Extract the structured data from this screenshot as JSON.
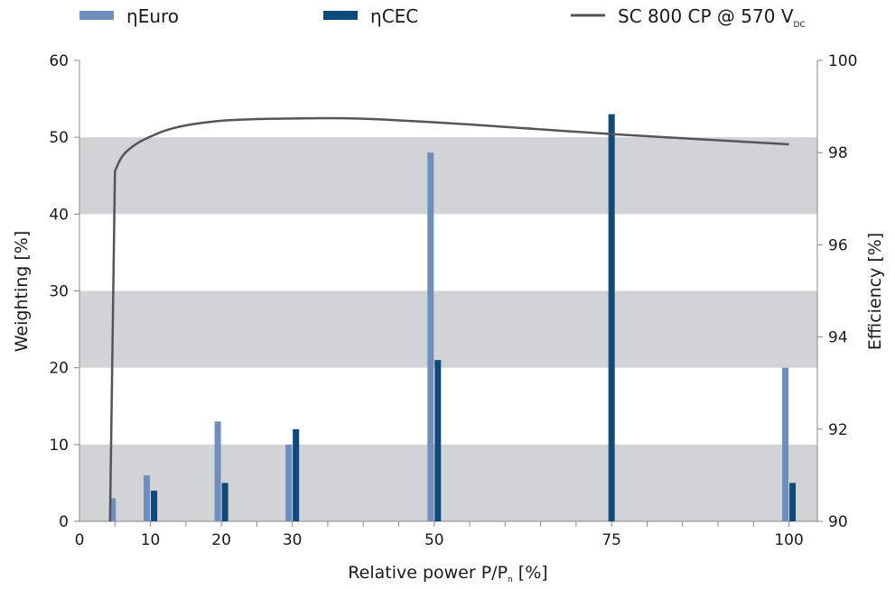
{
  "chart_data": {
    "type": "bar",
    "xlabel": "Relative power P/P",
    "xlabel_sub": "n",
    "xlabel_unit": " [%]",
    "ylabel": "Weighting [%]",
    "y2label": "Efficiency [%]",
    "xlim": [
      0,
      104
    ],
    "ylim": [
      0,
      60
    ],
    "y2lim": [
      90,
      100
    ],
    "x_tick_labels": [
      {
        "x": 0,
        "label": "0"
      },
      {
        "x": 10,
        "label": "10"
      },
      {
        "x": 20,
        "label": "20"
      },
      {
        "x": 30,
        "label": "30"
      },
      {
        "x": 50,
        "label": "50"
      },
      {
        "x": 75,
        "label": "75"
      },
      {
        "x": 100,
        "label": "100"
      }
    ],
    "y_ticks": [
      0,
      10,
      20,
      30,
      40,
      50,
      60
    ],
    "y2_ticks": [
      90,
      92,
      94,
      96,
      98,
      100
    ],
    "shaded_bands": [
      [
        0,
        10
      ],
      [
        20,
        30
      ],
      [
        40,
        50
      ]
    ],
    "colors": {
      "euro": "#6e8fbd",
      "cec": "#0f4a7c",
      "curve": "#555555",
      "band": "#d2d3d5",
      "axis": "#888888"
    },
    "series": [
      {
        "name": "ηEuro",
        "legend_prefix": "η",
        "legend_main": "Euro",
        "x": [
          5,
          10,
          20,
          30,
          50,
          100
        ],
        "values": [
          3,
          6,
          13,
          10,
          48,
          20
        ]
      },
      {
        "name": "ηCEC",
        "legend_prefix": "η",
        "legend_main": "CEC",
        "x": [
          10,
          20,
          30,
          50,
          75,
          100
        ],
        "values": [
          4,
          5,
          12,
          21,
          53,
          5
        ]
      }
    ],
    "line_series": {
      "name": "SC 800 CP @ 570 V",
      "legend_text": "SC 800 CP @ 570 V",
      "legend_sub": "DC",
      "axis": "y2",
      "x": [
        4.3,
        5,
        6,
        8,
        10,
        12,
        15,
        20,
        25,
        30,
        35,
        40,
        45,
        50,
        60,
        75,
        90,
        100
      ],
      "y": [
        90.0,
        97.6,
        97.95,
        98.2,
        98.35,
        98.48,
        98.6,
        98.7,
        98.73,
        98.74,
        98.75,
        98.74,
        98.7,
        98.66,
        98.56,
        98.4,
        98.27,
        98.18
      ]
    }
  }
}
